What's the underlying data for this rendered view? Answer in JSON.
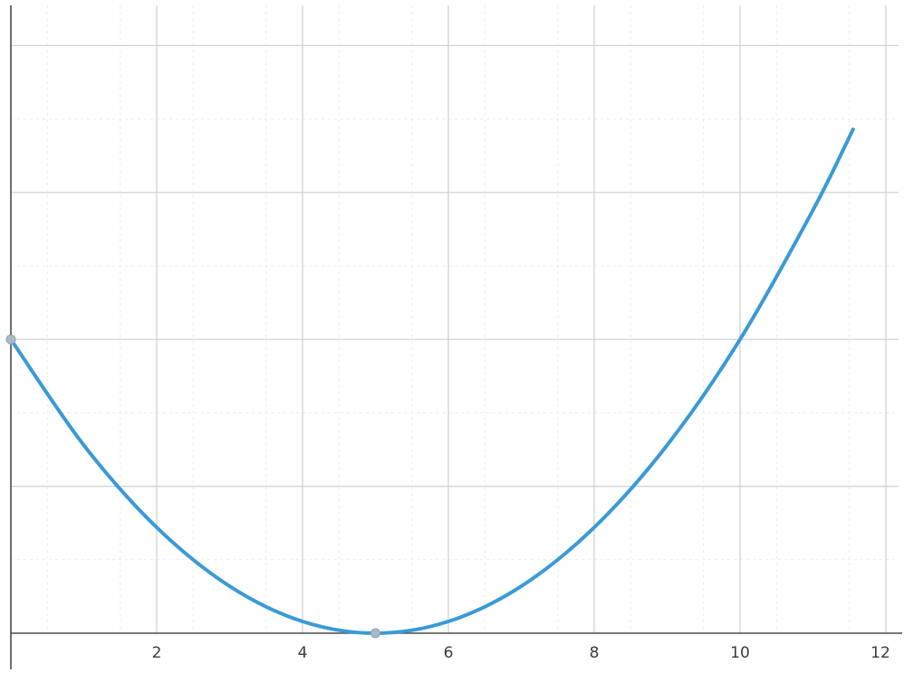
{
  "chart_data": {
    "type": "line",
    "title": "",
    "xlabel": "",
    "ylabel": "",
    "xlim": [
      0,
      12
    ],
    "ylim": [
      0,
      8.5
    ],
    "grid": true,
    "x_ticks": [
      2,
      4,
      6,
      8,
      10,
      12
    ],
    "x_tick_labels": [
      "2",
      "4",
      "6",
      "8",
      "10",
      "12"
    ],
    "y_gridlines": [
      2,
      4,
      6,
      8
    ],
    "series": [
      {
        "color": "#3a9ad6",
        "function": "(x-5)^2 / 6.25",
        "x": [
          0,
          1,
          2,
          3,
          4,
          5,
          6,
          7,
          8,
          9,
          10,
          11,
          11.55
        ],
        "y": [
          4.0,
          2.56,
          1.44,
          0.64,
          0.16,
          0.0,
          0.16,
          0.64,
          1.44,
          2.56,
          4.0,
          5.76,
          6.86
        ]
      }
    ],
    "points": [
      {
        "x": 0,
        "y": 4.0,
        "color": "#a9b9c6"
      },
      {
        "x": 5,
        "y": 0.0,
        "color": "#a9b9c6"
      }
    ]
  }
}
